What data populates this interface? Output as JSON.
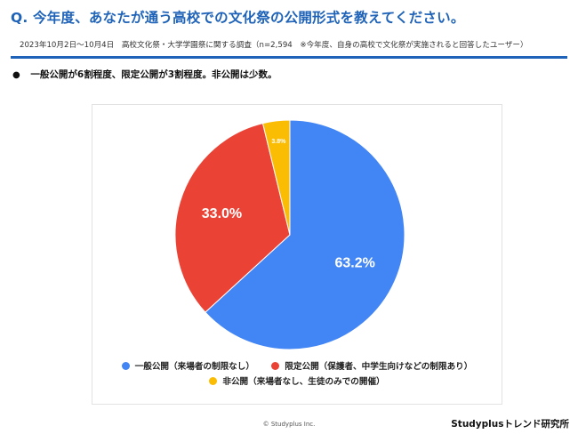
{
  "header": {
    "question": "Q. 今年度、あなたが通う高校での文化祭の公開形式を教えてください。",
    "subtitle": "2023年10月2日〜10月4日　高校文化祭・大学学園祭に関する調査（n=2,594　※今年度、自身の高校で文化祭が実施されると回答したユーザー）"
  },
  "summary": {
    "bullet": "●",
    "text": "一般公開が6割程度、限定公開が3割程度。非公開は少数。"
  },
  "chart_data": {
    "type": "pie",
    "labels": [
      "一般公開（来場者の制限なし）",
      "限定公開（保護者、中学生向けなどの制限あり）",
      "非公開（来場者なし、生徒のみでの開催）"
    ],
    "values": [
      63.2,
      33.0,
      3.8
    ],
    "data_labels": [
      "63.2%",
      "33.0%",
      "3.8%"
    ],
    "colors": [
      "#4285f4",
      "#ea4335",
      "#fbbc04"
    ],
    "start_angle_deg": 0,
    "direction": "clockwise",
    "legend_position": "bottom"
  },
  "footer": {
    "copyright": "© Studyplus Inc.",
    "brand": "Studyplusトレンド研究所"
  }
}
